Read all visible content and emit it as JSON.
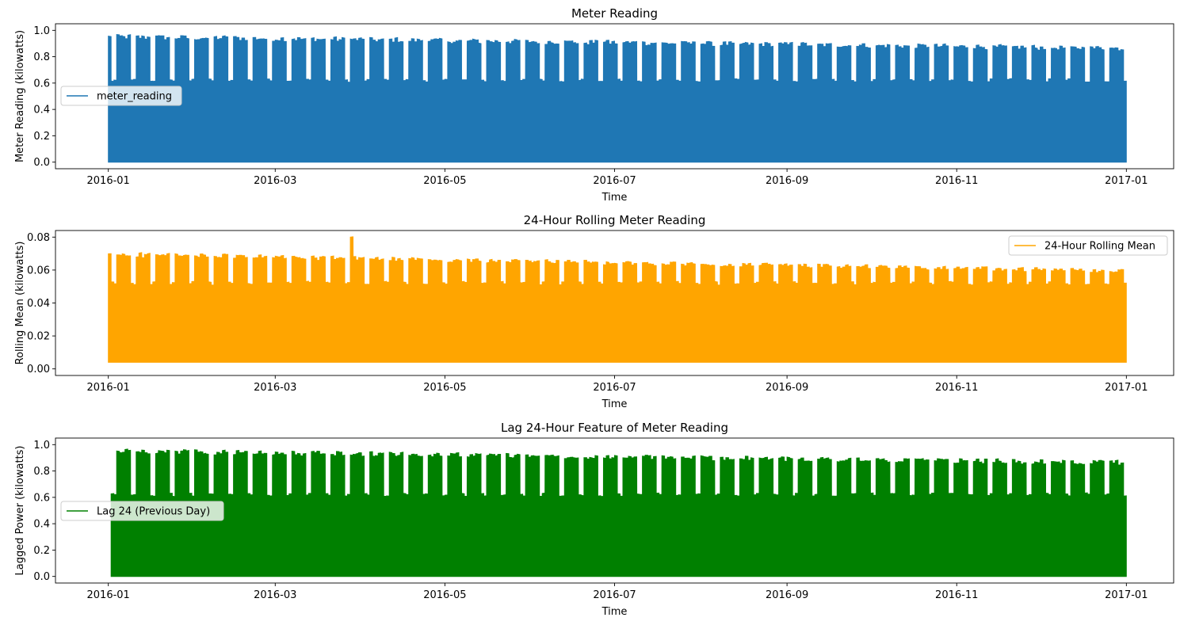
{
  "chart_data": [
    {
      "type": "line",
      "title": "Meter Reading",
      "xlabel": "Time",
      "ylabel": "Meter Reading (kilowatts)",
      "xlim": [
        "2015-12-13",
        "2017-01-18"
      ],
      "ylim": [
        -0.05,
        1.05
      ],
      "yticks": [
        0.0,
        0.2,
        0.4,
        0.6,
        0.8,
        1.0
      ],
      "ytick_labels": [
        "0.0",
        "0.2",
        "0.4",
        "0.6",
        "0.8",
        "1.0"
      ],
      "xticks": [
        "2016-01-01",
        "2016-03-01",
        "2016-05-01",
        "2016-07-01",
        "2016-09-01",
        "2016-11-01",
        "2017-01-01"
      ],
      "xtick_labels": [
        "2016-01",
        "2016-03",
        "2016-05",
        "2016-07",
        "2016-09",
        "2016-11",
        "2017-01"
      ],
      "legend_position": "center-left",
      "grid": false,
      "series": [
        {
          "name": "meter_reading",
          "color": "#1f77b4",
          "x": [
            "2016-01-01",
            "2016-12-31"
          ],
          "daily_min": 0.0,
          "daily_base_peak": 0.62,
          "weekday_peak_start": 0.96,
          "weekday_peak_end": 0.87
        }
      ]
    },
    {
      "type": "line",
      "title": "24-Hour Rolling Meter Reading",
      "xlabel": "Time",
      "ylabel": "Rolling Mean (kilowatts)",
      "xlim": [
        "2015-12-13",
        "2017-01-18"
      ],
      "ylim": [
        -0.004,
        0.084
      ],
      "yticks": [
        0.0,
        0.02,
        0.04,
        0.06,
        0.08
      ],
      "ytick_labels": [
        "0.00",
        "0.02",
        "0.04",
        "0.06",
        "0.08"
      ],
      "xticks": [
        "2016-01-01",
        "2016-03-01",
        "2016-05-01",
        "2016-07-01",
        "2016-09-01",
        "2016-11-01",
        "2017-01-01"
      ],
      "xtick_labels": [
        "2016-01",
        "2016-03",
        "2016-05",
        "2016-07",
        "2016-09",
        "2016-11",
        "2017-01"
      ],
      "legend_position": "upper-right",
      "grid": false,
      "series": [
        {
          "name": "24-Hour Rolling Mean",
          "color": "#ffa500",
          "x": [
            "2016-01-01",
            "2016-12-31"
          ],
          "daily_min": 0.004,
          "daily_base_peak": 0.052,
          "weekday_peak_start": 0.07,
          "weekday_peak_end": 0.06,
          "max": 0.08
        }
      ]
    },
    {
      "type": "line",
      "title": "Lag 24-Hour Feature of Meter Reading",
      "xlabel": "Time",
      "ylabel": "Lagged Power (kilowatts)",
      "xlim": [
        "2015-12-13",
        "2017-01-18"
      ],
      "ylim": [
        -0.05,
        1.05
      ],
      "yticks": [
        0.0,
        0.2,
        0.4,
        0.6,
        0.8,
        1.0
      ],
      "ytick_labels": [
        "0.0",
        "0.2",
        "0.4",
        "0.6",
        "0.8",
        "1.0"
      ],
      "xticks": [
        "2016-01-01",
        "2016-03-01",
        "2016-05-01",
        "2016-07-01",
        "2016-09-01",
        "2016-11-01",
        "2017-01-01"
      ],
      "xtick_labels": [
        "2016-01",
        "2016-03",
        "2016-05",
        "2016-07",
        "2016-09",
        "2016-11",
        "2017-01"
      ],
      "legend_position": "center-left",
      "grid": false,
      "series": [
        {
          "name": "Lag 24 (Previous Day)",
          "color": "#008000",
          "x": [
            "2016-01-02",
            "2016-12-31"
          ],
          "daily_min": 0.0,
          "daily_base_peak": 0.62,
          "weekday_peak_start": 0.96,
          "weekday_peak_end": 0.87
        }
      ]
    }
  ]
}
